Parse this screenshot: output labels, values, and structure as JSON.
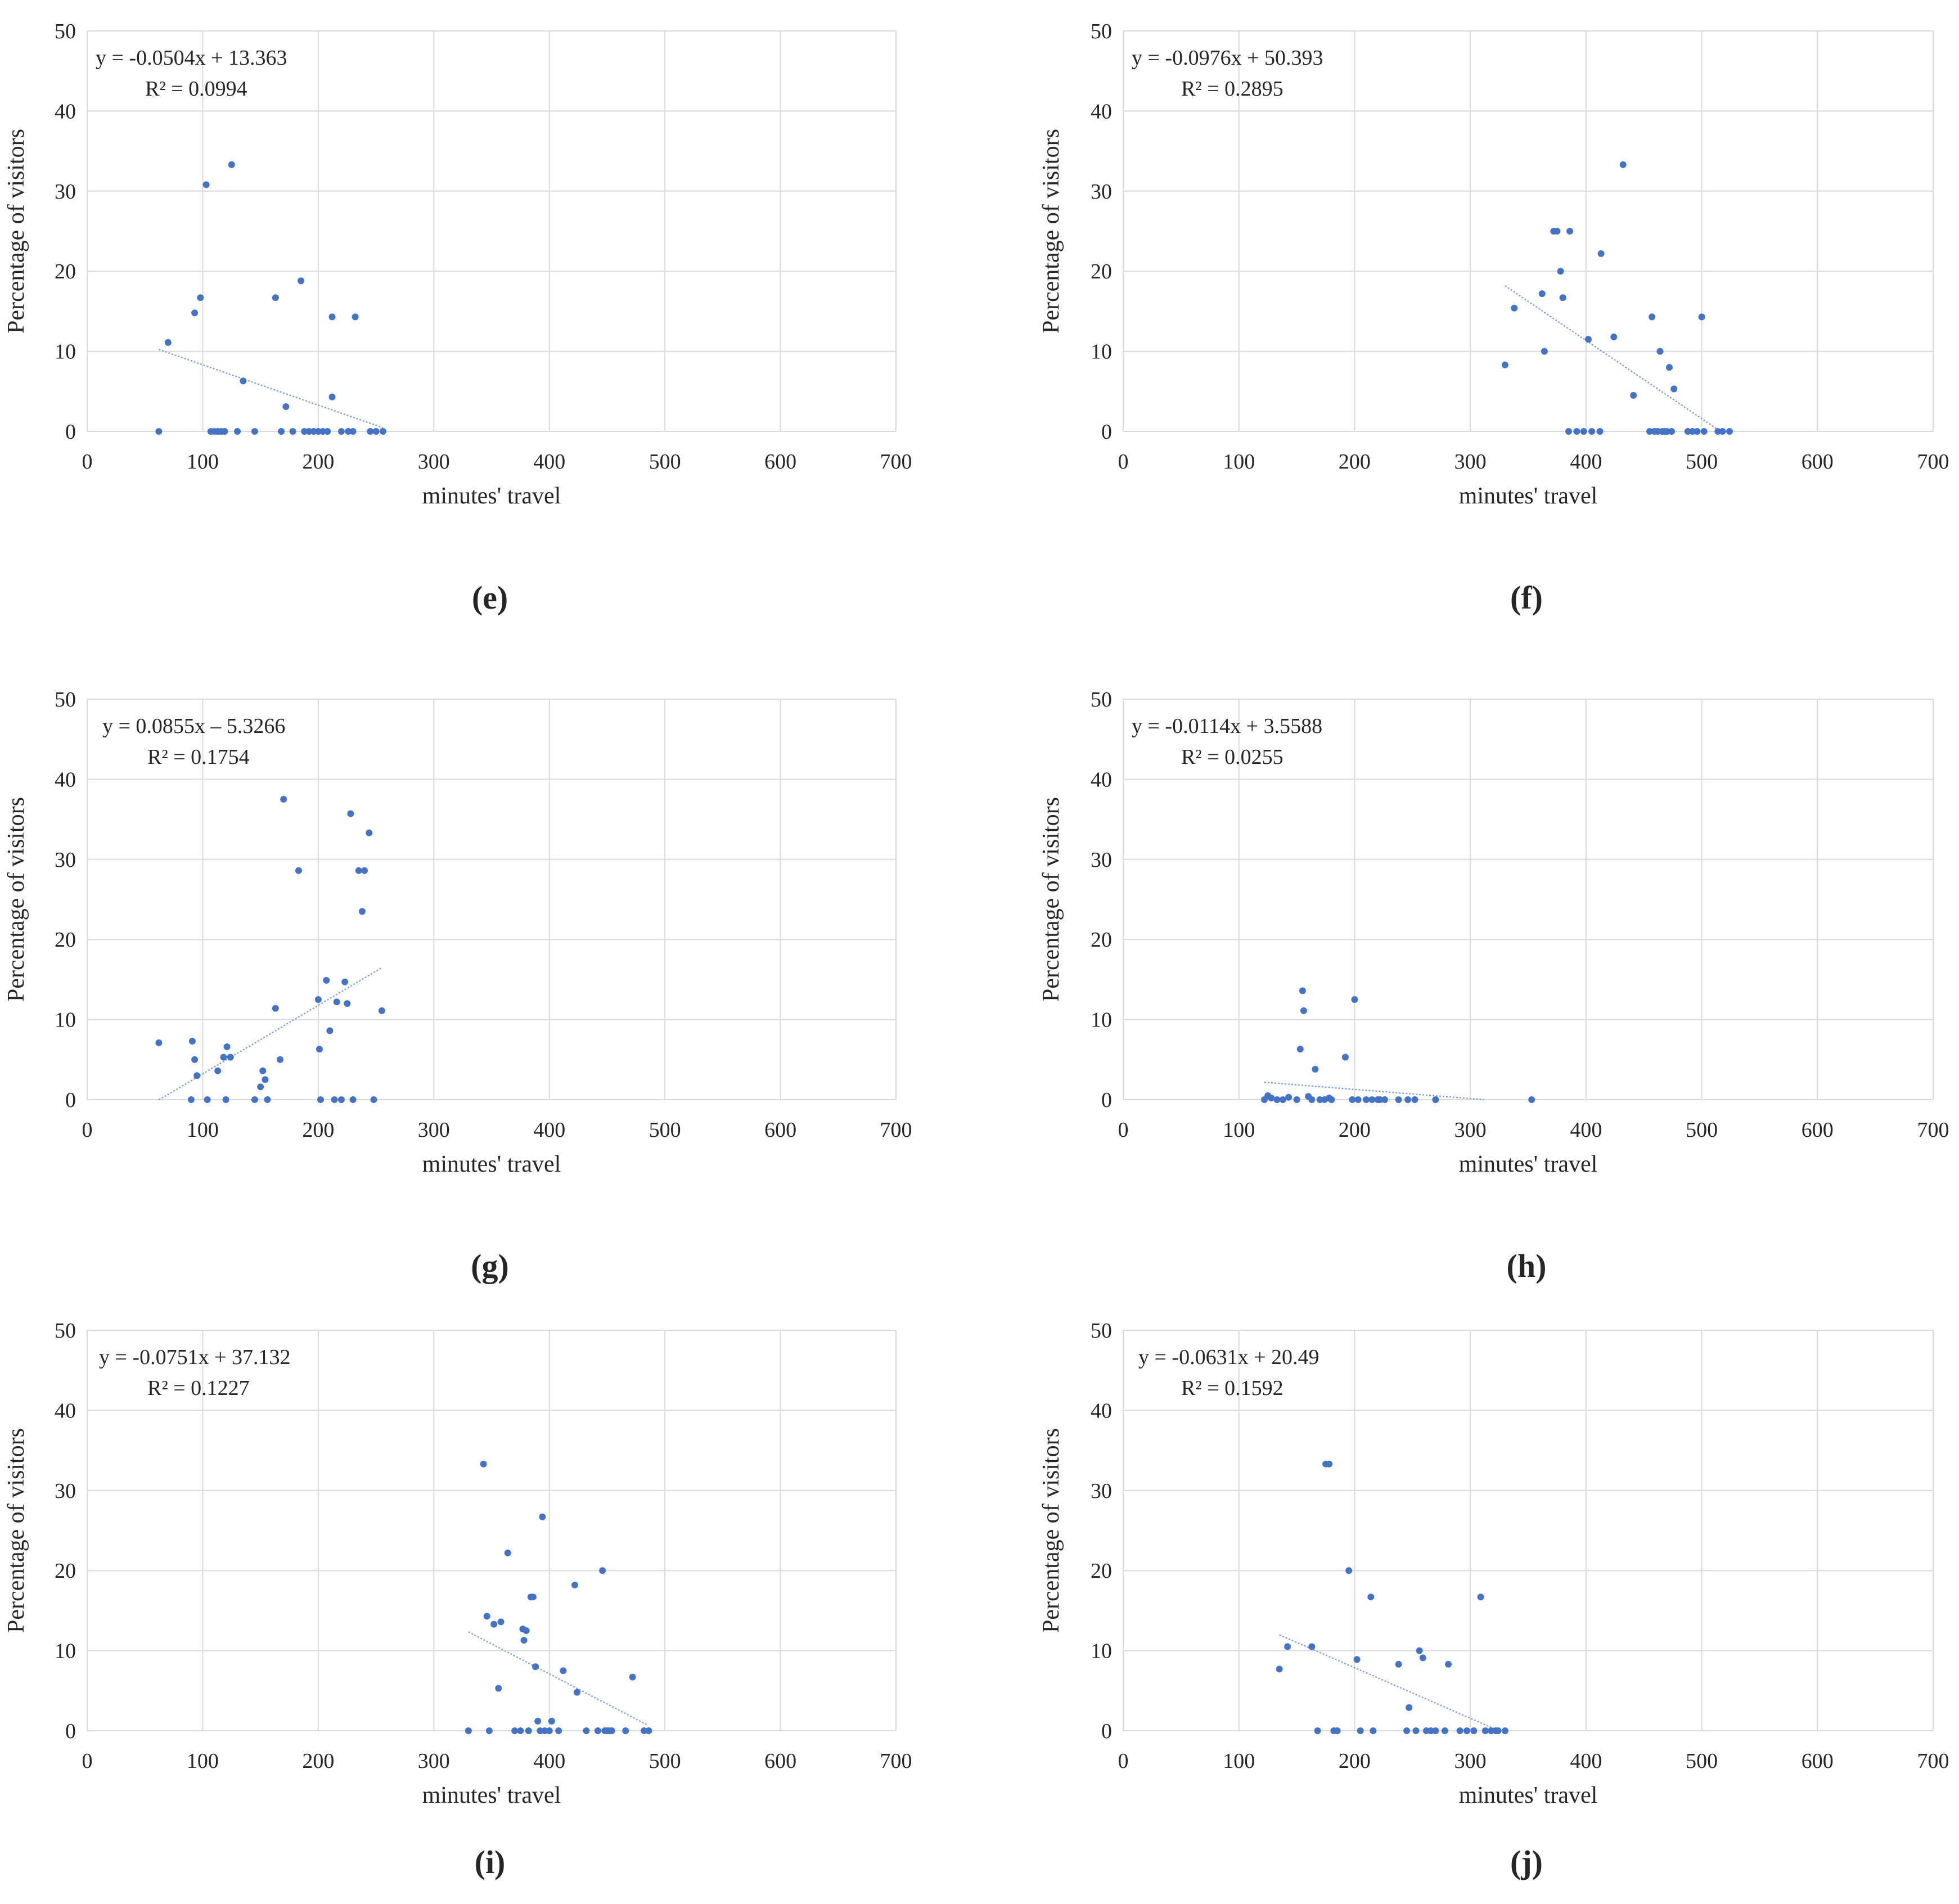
{
  "chart_data": [
    {
      "type": "scatter",
      "panel_label": "(e)",
      "xlabel": "minutes' travel",
      "ylabel": "Percentage of visitors",
      "xlim": [
        0,
        700
      ],
      "ylim": [
        0,
        50
      ],
      "x_ticks": [
        "0",
        "100",
        "200",
        "300",
        "400",
        "500",
        "600",
        "700"
      ],
      "y_ticks": [
        "0",
        "10",
        "20",
        "30",
        "40",
        "50"
      ],
      "trendline": {
        "equation": "y = -0.0504x + 13.363",
        "r2": "R² = 0.0994",
        "slope": -0.0504,
        "intercept": 13.363,
        "x_range": [
          62,
          256
        ]
      },
      "x": [
        62,
        70,
        93,
        98,
        103,
        107,
        110,
        113,
        116,
        119,
        125,
        130,
        135,
        145,
        163,
        168,
        172,
        178,
        185,
        188,
        192,
        196,
        200,
        204,
        208,
        212,
        212,
        220,
        226,
        230,
        232,
        245,
        250,
        256
      ],
      "y": [
        0,
        11.1,
        14.8,
        16.7,
        30.8,
        0,
        0,
        0,
        0,
        0,
        33.3,
        0,
        6.3,
        0,
        16.7,
        0,
        3.1,
        0,
        18.8,
        0,
        0,
        0,
        0,
        0,
        0,
        14.3,
        4.3,
        0,
        0,
        0,
        14.3,
        0,
        0,
        0
      ]
    },
    {
      "type": "scatter",
      "panel_label": "(f)",
      "xlabel": "minutes' travel",
      "ylabel": "Percentage of visitors",
      "xlim": [
        0,
        700
      ],
      "ylim": [
        0,
        50
      ],
      "x_ticks": [
        "0",
        "100",
        "200",
        "300",
        "400",
        "500",
        "600",
        "700"
      ],
      "y_ticks": [
        "0",
        "10",
        "20",
        "30",
        "40",
        "50"
      ],
      "trendline": {
        "equation": "y = -0.0976x + 50.393",
        "r2": "R² = 0.2895",
        "slope": -0.0976,
        "intercept": 50.393,
        "x_range": [
          330,
          516
        ]
      },
      "x": [
        330,
        338,
        362,
        364,
        372,
        375,
        378,
        380,
        386,
        385,
        392,
        398,
        402,
        405,
        412,
        413,
        424,
        432,
        441,
        455,
        457,
        459,
        462,
        464,
        466,
        468,
        470,
        472,
        474,
        476,
        488,
        492,
        496,
        500,
        502,
        514,
        518,
        524
      ],
      "y": [
        8.3,
        15.4,
        17.2,
        10,
        25,
        25,
        20,
        16.7,
        25,
        0,
        0,
        0,
        11.5,
        0,
        0,
        22.2,
        11.8,
        33.3,
        4.5,
        0,
        14.3,
        0,
        0,
        10,
        0,
        0,
        0,
        8,
        0,
        5.3,
        0,
        0,
        0,
        14.3,
        0,
        0,
        0,
        0
      ]
    },
    {
      "type": "scatter",
      "panel_label": "(g)",
      "xlabel": "minutes' travel",
      "ylabel": "Percentage of visitors",
      "xlim": [
        0,
        700
      ],
      "ylim": [
        0,
        50
      ],
      "x_ticks": [
        "0",
        "100",
        "200",
        "300",
        "400",
        "500",
        "600",
        "700"
      ],
      "y_ticks": [
        "0",
        "10",
        "20",
        "30",
        "40",
        "50"
      ],
      "trendline": {
        "equation": "y = 0.0855x – 5.3266",
        "r2": "R² = 0.1754",
        "slope": 0.0855,
        "intercept": -5.3266,
        "x_range": [
          62,
          255
        ]
      },
      "x": [
        62,
        90,
        91,
        93,
        95,
        104,
        113,
        118,
        120,
        121,
        124,
        145,
        150,
        152,
        154,
        156,
        163,
        167,
        170,
        183,
        200,
        201,
        202,
        207,
        210,
        214,
        216,
        220,
        223,
        225,
        228,
        230,
        235,
        238,
        240,
        244,
        248,
        255
      ],
      "y": [
        7.1,
        0,
        7.3,
        5,
        3,
        0,
        3.6,
        5.3,
        0,
        6.6,
        5.3,
        0,
        1.6,
        3.6,
        2.5,
        0,
        11.4,
        5,
        37.5,
        28.6,
        12.5,
        6.3,
        0,
        14.9,
        8.6,
        0,
        12.2,
        0,
        14.7,
        12,
        35.7,
        0,
        28.6,
        23.5,
        28.6,
        33.3,
        0,
        11.1
      ]
    },
    {
      "type": "scatter",
      "panel_label": "(h)",
      "xlabel": "minutes' travel",
      "ylabel": "Percentage of visitors",
      "xlim": [
        0,
        700
      ],
      "ylim": [
        0,
        50
      ],
      "x_ticks": [
        "0",
        "100",
        "200",
        "300",
        "400",
        "500",
        "600",
        "700"
      ],
      "y_ticks": [
        "0",
        "10",
        "20",
        "30",
        "40",
        "50"
      ],
      "trendline": {
        "equation": "y = -0.0114x + 3.5588",
        "r2": "R² = 0.0255",
        "slope": -0.0114,
        "intercept": 3.5588,
        "x_range": [
          122,
          312
        ]
      },
      "x": [
        122,
        125,
        128,
        133,
        138,
        143,
        150,
        153,
        155,
        156,
        160,
        163,
        166,
        170,
        174,
        178,
        180,
        192,
        198,
        200,
        203,
        210,
        215,
        220,
        222,
        226,
        238,
        246,
        252,
        270,
        353
      ],
      "y": [
        0,
        0.5,
        0.2,
        0,
        0,
        0.3,
        0,
        6.3,
        13.6,
        11.1,
        0.4,
        0,
        3.8,
        0,
        0,
        0.2,
        0,
        5.3,
        0,
        12.5,
        0,
        0,
        0,
        0,
        0,
        0,
        0,
        0,
        0,
        0,
        0
      ]
    },
    {
      "type": "scatter",
      "panel_label": "(i)",
      "xlabel": "minutes' travel",
      "ylabel": "Percentage of visitors",
      "xlim": [
        0,
        700
      ],
      "ylim": [
        0,
        50
      ],
      "x_ticks": [
        "0",
        "100",
        "200",
        "300",
        "400",
        "500",
        "600",
        "700"
      ],
      "y_ticks": [
        "0",
        "10",
        "20",
        "30",
        "40",
        "50"
      ],
      "trendline": {
        "equation": "y = -0.0751x + 37.132",
        "r2": "R² = 0.1227",
        "slope": -0.0751,
        "intercept": 37.132,
        "x_range": [
          330,
          485
        ]
      },
      "x": [
        330,
        343,
        346,
        348,
        352,
        356,
        358,
        364,
        370,
        375,
        377,
        378,
        380,
        382,
        384,
        386,
        388,
        390,
        392,
        394,
        396,
        400,
        402,
        408,
        412,
        422,
        424,
        432,
        442,
        446,
        448,
        450,
        452,
        454,
        466,
        472,
        482,
        486
      ],
      "y": [
        0,
        33.3,
        14.3,
        0,
        13.3,
        5.3,
        13.6,
        22.2,
        0,
        0,
        12.7,
        11.3,
        12.5,
        0,
        16.7,
        16.7,
        8,
        1.2,
        0,
        26.7,
        0,
        0,
        1.2,
        0,
        7.5,
        18.2,
        4.8,
        0,
        0,
        20,
        0,
        0,
        0,
        0,
        0,
        6.7,
        0,
        0
      ]
    },
    {
      "type": "scatter",
      "panel_label": "(j)",
      "xlabel": "minutes' travel",
      "ylabel": "Percentage of visitors",
      "xlim": [
        0,
        700
      ],
      "ylim": [
        0,
        50
      ],
      "x_ticks": [
        "0",
        "100",
        "200",
        "300",
        "400",
        "500",
        "600",
        "700"
      ],
      "y_ticks": [
        "0",
        "10",
        "20",
        "30",
        "40",
        "50"
      ],
      "trendline": {
        "equation": "y = -0.0631x + 20.49",
        "r2": "R² = 0.1592",
        "slope": -0.0631,
        "intercept": 20.49,
        "x_range": [
          135,
          324
        ]
      },
      "x": [
        135,
        142,
        163,
        168,
        175,
        178,
        182,
        185,
        195,
        202,
        205,
        214,
        216,
        238,
        245,
        247,
        253,
        256,
        259,
        262,
        266,
        270,
        278,
        281,
        291,
        297,
        303,
        309,
        313,
        318,
        322,
        324,
        330
      ],
      "y": [
        7.7,
        10.5,
        10.5,
        0,
        33.3,
        33.3,
        0,
        0,
        20,
        8.9,
        0,
        16.7,
        0,
        8.3,
        0,
        2.9,
        0,
        10,
        9.1,
        0,
        0,
        0,
        0,
        8.3,
        0,
        0,
        0,
        16.7,
        0,
        0,
        0,
        0,
        0
      ]
    }
  ]
}
